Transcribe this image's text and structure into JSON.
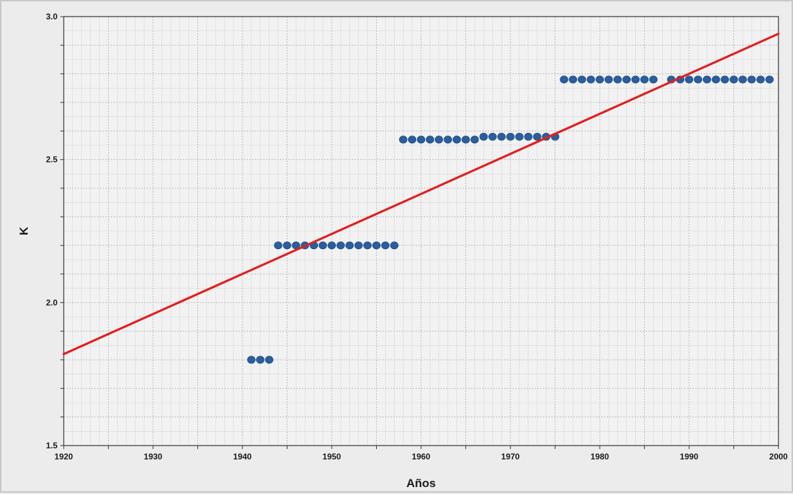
{
  "chart_data": {
    "type": "scatter",
    "title": "",
    "xlabel": "Años",
    "ylabel": "K",
    "xlim": [
      1920,
      2000
    ],
    "ylim": [
      1.5,
      3.0
    ],
    "x_ticks": [
      1920,
      1930,
      1940,
      1950,
      1960,
      1970,
      1980,
      1990,
      2000
    ],
    "y_ticks": [
      1.5,
      2.0,
      2.5,
      3.0
    ],
    "y_tick_labels": [
      "1.5",
      "2.0",
      "2.5",
      "3.0"
    ],
    "grid": true,
    "legend": "none",
    "colors": {
      "points": "#2a5e9e",
      "trend": "#e02020",
      "plot_bg": "#f2f2f2",
      "grid": "#b9b9b9",
      "gridMinor": "#d6d6d6"
    },
    "series": [
      {
        "kind": "points",
        "x": [
          1941,
          1942,
          1943,
          1944,
          1945,
          1946,
          1947,
          1948,
          1949,
          1950,
          1951,
          1952,
          1953,
          1954,
          1955,
          1956,
          1957,
          1958,
          1959,
          1960,
          1961,
          1962,
          1963,
          1964,
          1965,
          1966,
          1967,
          1968,
          1969,
          1970,
          1971,
          1972,
          1973,
          1974,
          1975,
          1976,
          1977,
          1978,
          1979,
          1980,
          1981,
          1982,
          1983,
          1984,
          1985,
          1986,
          1988,
          1989,
          1990,
          1991,
          1992,
          1993,
          1994,
          1995,
          1996,
          1997,
          1998,
          1999
        ],
        "y": [
          1.8,
          1.8,
          1.8,
          2.2,
          2.2,
          2.2,
          2.2,
          2.2,
          2.2,
          2.2,
          2.2,
          2.2,
          2.2,
          2.2,
          2.2,
          2.2,
          2.2,
          2.57,
          2.57,
          2.57,
          2.57,
          2.57,
          2.57,
          2.57,
          2.57,
          2.57,
          2.58,
          2.58,
          2.58,
          2.58,
          2.58,
          2.58,
          2.58,
          2.58,
          2.58,
          2.78,
          2.78,
          2.78,
          2.78,
          2.78,
          2.78,
          2.78,
          2.78,
          2.78,
          2.78,
          2.78,
          2.78,
          2.78,
          2.78,
          2.78,
          2.78,
          2.78,
          2.78,
          2.78,
          2.78,
          2.78,
          2.78,
          2.78
        ]
      },
      {
        "kind": "trend-line",
        "x": [
          1920,
          2000
        ],
        "y": [
          1.82,
          2.94
        ]
      }
    ]
  }
}
